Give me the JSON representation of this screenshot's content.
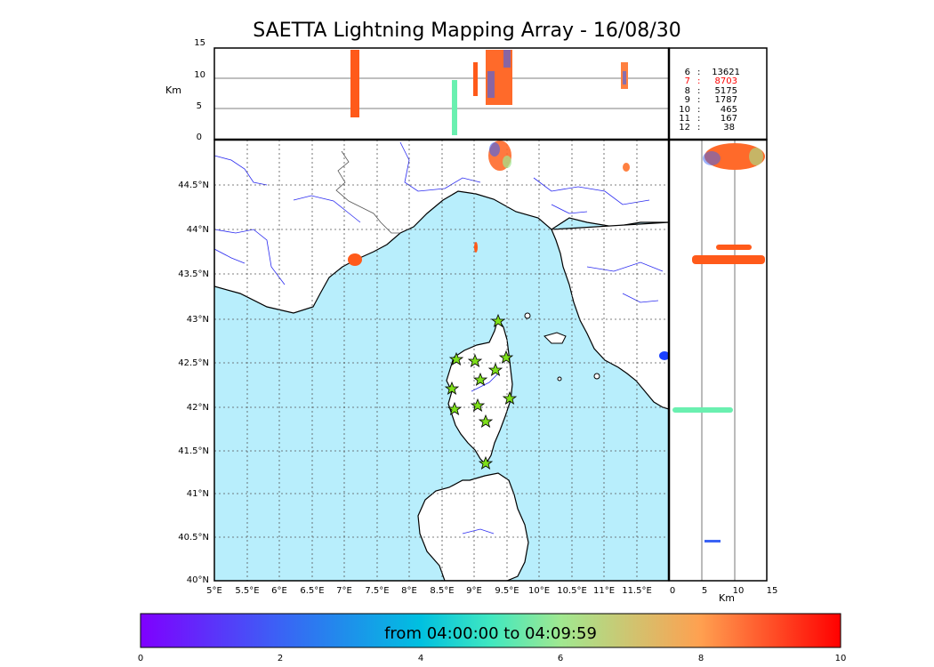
{
  "title": "SAETTA Lightning Mapping Array - 16/08/30",
  "colors": {
    "sea": "#b8eefc",
    "land": "#ffffff",
    "rivers": "#2a2af0",
    "grid": "#555555",
    "station_fill": "#7ee01a",
    "density_label_highlight": "#ff0000"
  },
  "top_panel": {
    "ylabel": "Km",
    "yticks": [
      "15",
      "10",
      "5",
      "0"
    ]
  },
  "side_panel": {
    "xlabel": "Km",
    "xticks": [
      "0",
      "5",
      "10",
      "15"
    ]
  },
  "map": {
    "lat_ticks": [
      "44.5°N",
      "44°N",
      "43.5°N",
      "43°N",
      "42.5°N",
      "42°N",
      "41.5°N",
      "41°N",
      "40.5°N",
      "40°N"
    ],
    "lon_ticks": [
      "5°E",
      "5.5°E",
      "6°E",
      "6.5°E",
      "7°E",
      "7.5°E",
      "8°E",
      "8.5°E",
      "9°E",
      "9.5°E",
      "10°E",
      "10.5°E",
      "11°E",
      "11.5°E"
    ]
  },
  "station_counts": [
    {
      "stations": "6",
      "sep": ":",
      "count": "13621",
      "highlight": false
    },
    {
      "stations": "7",
      "sep": ":",
      "count": "8703",
      "highlight": true
    },
    {
      "stations": "8",
      "sep": ":",
      "count": "5175",
      "highlight": false
    },
    {
      "stations": "9",
      "sep": ":",
      "count": "1787",
      "highlight": false
    },
    {
      "stations": "10",
      "sep": ":",
      "count": "465",
      "highlight": false
    },
    {
      "stations": "11",
      "sep": ":",
      "count": "167",
      "highlight": false
    },
    {
      "stations": "12",
      "sep": ":",
      "count": "38",
      "highlight": false
    }
  ],
  "colorbar": {
    "label": "from 04:00:00 to 04:09:59",
    "ticks": [
      "0",
      "2",
      "4",
      "6",
      "8",
      "10"
    ]
  },
  "stations_icon": "star-icon"
}
